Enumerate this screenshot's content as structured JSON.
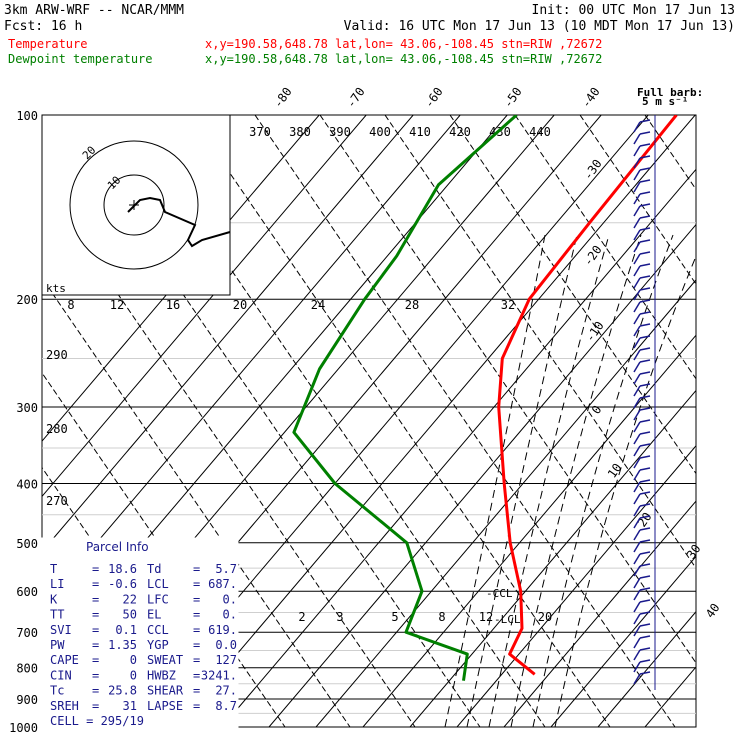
{
  "header": {
    "left_line1": "3km ARW-WRF -- NCAR/MMM",
    "left_line2": "Fcst:   16 h",
    "right_line1": "Init: 00 UTC Mon 17 Jun 13",
    "right_line2": "Valid: 16 UTC Mon 17 Jun 13 (10 MDT Mon 17 Jun 13)",
    "temp_label": "Temperature",
    "dew_label": "Dewpoint temperature",
    "loc_text": "x,y=190.58,648.78    lat,lon= 43.06,-108.45   stn=RIW ,72672",
    "temp_color": "#ff0000",
    "dew_color": "#008000"
  },
  "barb_legend": {
    "line1": "Full barb:",
    "line2": "5 m s⁻¹"
  },
  "hodograph": {
    "units": "kts",
    "ring_labels": [
      "20",
      "10"
    ]
  },
  "parcel_info": {
    "title": "Parcel Info",
    "rows": [
      {
        "k1": "T",
        "v1": "18.6",
        "k2": "Td",
        "v2": "5.7"
      },
      {
        "k1": "LI",
        "v1": "-0.6",
        "k2": "LCL",
        "v2": "687."
      },
      {
        "k1": "K",
        "v1": "22",
        "k2": "LFC",
        "v2": "0."
      },
      {
        "k1": "TT",
        "v1": "50",
        "k2": "EL",
        "v2": "0."
      },
      {
        "k1": "SVI",
        "v1": "0.1",
        "k2": "CCL",
        "v2": "619."
      },
      {
        "k1": "PW",
        "v1": "1.35",
        "k2": "YGP",
        "v2": "0.0"
      },
      {
        "k1": "CAPE",
        "v1": "0",
        "k2": "SWEAT",
        "v2": "127"
      },
      {
        "k1": "CIN",
        "v1": "0",
        "k2": "HWBZ",
        "v2": "3241."
      },
      {
        "k1": "Tc",
        "v1": "25.8",
        "k2": "SHEAR",
        "v2": "27."
      },
      {
        "k1": "SREH",
        "v1": "31",
        "k2": "LAPSE",
        "v2": "8.7"
      }
    ],
    "cell": "CELL = 295/19"
  },
  "chart_data": {
    "type": "skew-t",
    "pressure_levels": [
      100,
      200,
      300,
      400,
      500,
      600,
      700,
      800,
      900,
      1000
    ],
    "isotherm_labels": [
      "-80",
      "-70",
      "-60",
      "-50",
      "-40",
      "-30",
      "-20",
      "-10",
      "0",
      "10",
      "20",
      "30",
      "40"
    ],
    "theta_labels_top": [
      "370",
      "380",
      "390",
      "400",
      "410",
      "420",
      "430",
      "440"
    ],
    "theta_labels_left": [
      "290",
      "280",
      "270"
    ],
    "mixing_ratio_labels_mid": [
      "8",
      "12",
      "16",
      "20",
      "24",
      "28",
      "32"
    ],
    "mixing_ratio_labels_low": [
      "2",
      "3",
      "5",
      "8",
      "12",
      "20"
    ],
    "annotations": [
      "CCL",
      "LCL"
    ],
    "series": [
      {
        "name": "Temperature",
        "color": "#ff0000",
        "points": [
          {
            "p": 100,
            "t": -54
          },
          {
            "p": 150,
            "t": -53
          },
          {
            "p": 200,
            "t": -52
          },
          {
            "p": 250,
            "t": -47
          },
          {
            "p": 300,
            "t": -39
          },
          {
            "p": 400,
            "t": -24
          },
          {
            "p": 500,
            "t": -12
          },
          {
            "p": 600,
            "t": -1
          },
          {
            "p": 690,
            "t": 6
          },
          {
            "p": 760,
            "t": 8
          },
          {
            "p": 820,
            "t": 17
          }
        ]
      },
      {
        "name": "Dewpoint temperature",
        "color": "#008000",
        "points": [
          {
            "p": 100,
            "t": -88
          },
          {
            "p": 130,
            "t": -92
          },
          {
            "p": 170,
            "t": -88
          },
          {
            "p": 200,
            "t": -87
          },
          {
            "p": 260,
            "t": -84
          },
          {
            "p": 330,
            "t": -78
          },
          {
            "p": 400,
            "t": -60
          },
          {
            "p": 500,
            "t": -34
          },
          {
            "p": 600,
            "t": -22
          },
          {
            "p": 700,
            "t": -18
          },
          {
            "p": 760,
            "t": -1
          },
          {
            "p": 840,
            "t": 3
          }
        ]
      }
    ],
    "wind_profile_kts": [
      {
        "p": 100,
        "speed": 40
      },
      {
        "p": 200,
        "speed": 45
      },
      {
        "p": 300,
        "speed": 40
      },
      {
        "p": 400,
        "speed": 30
      },
      {
        "p": 500,
        "speed": 25
      },
      {
        "p": 600,
        "speed": 20
      },
      {
        "p": 700,
        "speed": 15
      },
      {
        "p": 800,
        "speed": 10
      }
    ]
  }
}
